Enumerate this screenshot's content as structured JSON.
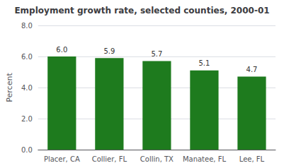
{
  "chart_data": {
    "type": "bar",
    "title": "Employment growth rate, selected counties, 2000-01",
    "categories": [
      "Placer, CA",
      "Collier, FL",
      "Collin, TX",
      "Manatee, FL",
      "Lee, FL"
    ],
    "values": [
      6.0,
      5.9,
      5.7,
      5.1,
      4.7
    ],
    "value_labels": [
      "6.0",
      "5.9",
      "5.7",
      "5.1",
      "4.7"
    ],
    "data_labels": true,
    "color": "#1e7b1e",
    "ylabel": "Percent",
    "ylim": [
      0,
      8.0
    ],
    "yticks": [
      {
        "value": 0.0,
        "label": "0.0"
      },
      {
        "value": 2.0,
        "label": "2.0"
      },
      {
        "value": 4.0,
        "label": "4.0"
      },
      {
        "value": 6.0,
        "label": "6.0"
      },
      {
        "value": 8.0,
        "label": "8.0"
      }
    ],
    "grid": true
  }
}
